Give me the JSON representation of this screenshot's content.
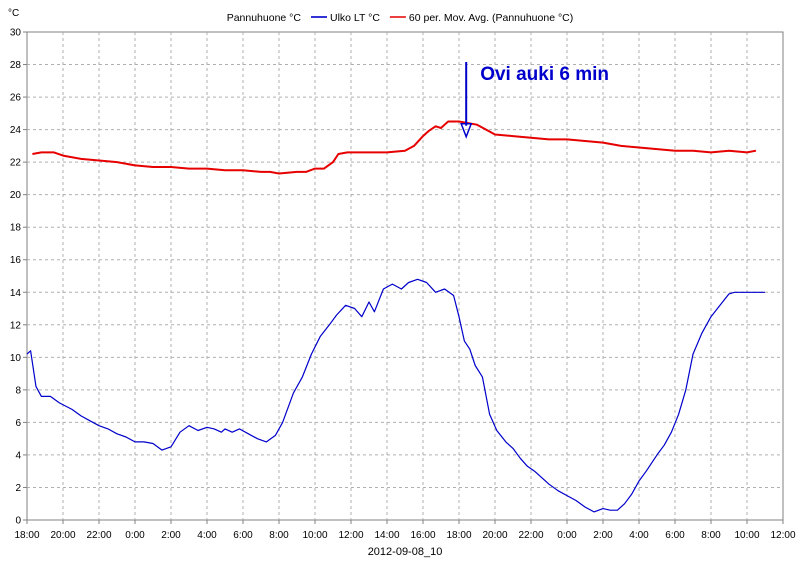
{
  "chart_data": {
    "type": "line",
    "y_unit": "°C",
    "xlabel": "2012-09-08_10",
    "x_ticks": [
      "18:00",
      "20:00",
      "22:00",
      "0:00",
      "2:00",
      "4:00",
      "6:00",
      "8:00",
      "10:00",
      "12:00",
      "14:00",
      "16:00",
      "18:00",
      "20:00",
      "22:00",
      "0:00",
      "2:00",
      "4:00",
      "6:00",
      "8:00",
      "10:00",
      "12:00"
    ],
    "y_ticks": [
      "0",
      "2",
      "4",
      "6",
      "8",
      "10",
      "12",
      "14",
      "16",
      "18",
      "20",
      "22",
      "24",
      "26",
      "28",
      "30"
    ],
    "xlim": [
      0,
      42
    ],
    "ylim": [
      0,
      30
    ],
    "grid": true,
    "legend_position": "top",
    "series": [
      {
        "name": "Pannuhuone °C",
        "color": "#000000",
        "x": [],
        "y": []
      },
      {
        "name": "Ulko LT °C",
        "color": "#0000cc",
        "x": [
          0,
          0.2,
          0.5,
          0.8,
          1.3,
          1.8,
          2.5,
          3,
          3.5,
          4,
          4.5,
          5,
          5.5,
          6,
          6.5,
          7,
          7.5,
          8,
          8.5,
          9,
          9.5,
          10,
          10.4,
          10.8,
          11,
          11.4,
          11.8,
          12.3,
          12.8,
          13.3,
          13.8,
          14.2,
          14.8,
          15.3,
          15.8,
          16.3,
          16.8,
          17.2,
          17.7,
          18.2,
          18.6,
          19,
          19.3,
          19.8,
          20.3,
          20.8,
          21.2,
          21.7,
          22.2,
          22.7,
          23.2,
          23.7,
          24,
          24.3,
          24.6,
          24.9,
          25.3,
          25.7,
          26.1,
          26.6,
          27,
          27.4,
          27.8,
          28.2,
          28.6,
          29,
          29.5,
          30,
          30.5,
          31,
          31.5,
          32,
          32.4,
          32.8,
          33.2,
          33.6,
          34,
          34.4,
          34.7,
          35,
          35.4,
          35.8,
          36.2,
          36.6,
          37,
          37.5,
          38,
          38.5,
          39,
          39.3,
          39.6,
          39.9,
          40.2,
          40.5,
          40.8,
          41
        ],
        "y": [
          10.2,
          10.4,
          8.2,
          7.6,
          7.6,
          7.2,
          6.8,
          6.4,
          6.1,
          5.8,
          5.6,
          5.3,
          5.1,
          4.8,
          4.8,
          4.7,
          4.3,
          4.5,
          5.4,
          5.8,
          5.5,
          5.7,
          5.6,
          5.4,
          5.6,
          5.4,
          5.6,
          5.3,
          5.0,
          4.8,
          5.2,
          6.0,
          7.8,
          8.8,
          10.2,
          11.3,
          12.0,
          12.6,
          13.2,
          13.0,
          12.5,
          13.4,
          12.8,
          14.2,
          14.5,
          14.2,
          14.6,
          14.8,
          14.6,
          14.0,
          14.2,
          13.8,
          12.5,
          11.0,
          10.5,
          9.5,
          8.8,
          6.5,
          5.5,
          4.8,
          4.4,
          3.8,
          3.3,
          3.0,
          2.6,
          2.2,
          1.8,
          1.5,
          1.2,
          0.8,
          0.5,
          0.7,
          0.6,
          0.6,
          1.0,
          1.6,
          2.4,
          3.0,
          3.5,
          4.0,
          4.6,
          5.4,
          6.5,
          8.0,
          10.2,
          11.5,
          12.5,
          13.2,
          13.9,
          14.0,
          14.0,
          14.0,
          14.0,
          14.0,
          14.0,
          14.0
        ]
      },
      {
        "name": "60 per. Mov. Avg. (Pannuhuone °C)",
        "color": "#e60000",
        "x": [
          0.3,
          0.8,
          1.5,
          2,
          3,
          4,
          5,
          6,
          7,
          8,
          9,
          10,
          11,
          12,
          13,
          13.5,
          14,
          15,
          15.5,
          16,
          16.5,
          17,
          17.3,
          17.8,
          18.5,
          19,
          19.5,
          20,
          21,
          21.5,
          22,
          22.3,
          22.7,
          23,
          23.2,
          23.4,
          23.6,
          24,
          25,
          26,
          27,
          28,
          29,
          30,
          31,
          32,
          33,
          34,
          35,
          36,
          37,
          38,
          39,
          40,
          40.5
        ],
        "y": [
          22.5,
          22.6,
          22.6,
          22.4,
          22.2,
          22.1,
          22.0,
          21.8,
          21.7,
          21.7,
          21.6,
          21.6,
          21.5,
          21.5,
          21.4,
          21.4,
          21.3,
          21.4,
          21.4,
          21.6,
          21.6,
          22.0,
          22.5,
          22.6,
          22.6,
          22.6,
          22.6,
          22.6,
          22.7,
          23.0,
          23.6,
          23.9,
          24.2,
          24.1,
          24.3,
          24.5,
          24.5,
          24.5,
          24.3,
          23.7,
          23.6,
          23.5,
          23.4,
          23.4,
          23.3,
          23.2,
          23.0,
          22.9,
          22.8,
          22.7,
          22.7,
          22.6,
          22.7,
          22.6,
          22.7
        ]
      }
    ],
    "annotations": [
      {
        "text": "Ovi auki 6 min",
        "x": 24.4,
        "y": 23.5,
        "color": "#0000cc"
      }
    ]
  }
}
